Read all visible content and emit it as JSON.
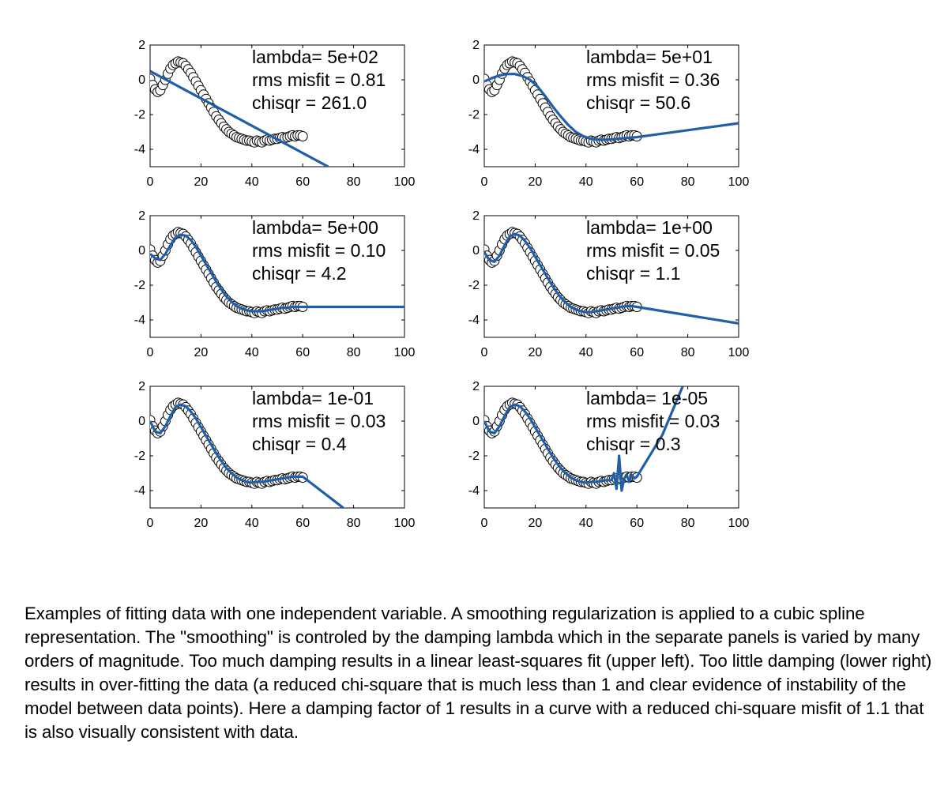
{
  "chart_data": [
    {
      "type": "line",
      "xlim": [
        0,
        100
      ],
      "ylim": [
        -5,
        2
      ],
      "xticks": [
        0,
        20,
        40,
        60,
        80,
        100
      ],
      "yticks": [
        -4,
        -2,
        0,
        2
      ],
      "annotations": [
        "lambda= 5e+02",
        "rms misfit =  0.81",
        "chisqr = 261.0"
      ],
      "fit_line": {
        "x": [
          0,
          70
        ],
        "y": [
          0.5,
          -5.0
        ]
      }
    },
    {
      "type": "line",
      "xlim": [
        0,
        100
      ],
      "ylim": [
        -5,
        2
      ],
      "xticks": [
        0,
        20,
        40,
        60,
        80,
        100
      ],
      "yticks": [
        -4,
        -2,
        0,
        2
      ],
      "annotations": [
        "lambda= 5e+01",
        "rms misfit =  0.36",
        "chisqr = 50.6"
      ],
      "fit_line": {
        "x": [
          0,
          3,
          6,
          9,
          12,
          15,
          18,
          21,
          24,
          27,
          30,
          33,
          36,
          39,
          42,
          45,
          48,
          52,
          56,
          60,
          70,
          80,
          90,
          100
        ],
        "y": [
          -0.1,
          0.1,
          0.25,
          0.33,
          0.33,
          0.22,
          0.0,
          -0.4,
          -0.95,
          -1.55,
          -2.1,
          -2.6,
          -3.0,
          -3.25,
          -3.4,
          -3.45,
          -3.45,
          -3.4,
          -3.35,
          -3.3,
          -3.1,
          -2.9,
          -2.7,
          -2.5
        ]
      }
    },
    {
      "type": "line",
      "xlim": [
        0,
        100
      ],
      "ylim": [
        -5,
        2
      ],
      "xticks": [
        0,
        20,
        40,
        60,
        80,
        100
      ],
      "yticks": [
        -4,
        -2,
        0,
        2
      ],
      "annotations": [
        "lambda= 5e+00",
        "rms misfit =  0.10",
        "chisqr = 4.2"
      ],
      "fit_line": {
        "x": [
          0,
          2,
          4,
          6,
          8,
          10,
          12,
          14,
          16,
          18,
          20,
          22,
          24,
          26,
          28,
          30,
          32,
          34,
          36,
          38,
          40,
          42,
          44,
          46,
          48,
          50,
          52,
          54,
          56,
          58,
          60,
          100
        ],
        "y": [
          -0.2,
          -0.45,
          -0.55,
          -0.2,
          0.3,
          0.75,
          0.9,
          0.85,
          0.6,
          0.2,
          -0.3,
          -0.8,
          -1.3,
          -1.8,
          -2.25,
          -2.65,
          -2.95,
          -3.2,
          -3.35,
          -3.45,
          -3.5,
          -3.5,
          -3.5,
          -3.45,
          -3.4,
          -3.35,
          -3.3,
          -3.3,
          -3.25,
          -3.25,
          -3.25,
          -3.25
        ]
      }
    },
    {
      "type": "line",
      "xlim": [
        0,
        100
      ],
      "ylim": [
        -5,
        2
      ],
      "xticks": [
        0,
        20,
        40,
        60,
        80,
        100
      ],
      "yticks": [
        -4,
        -2,
        0,
        2
      ],
      "annotations": [
        "lambda= 1e+00",
        "rms misfit =  0.05",
        "chisqr = 1.1"
      ],
      "fit_line": {
        "x": [
          0,
          2,
          4,
          6,
          8,
          10,
          12,
          14,
          16,
          18,
          20,
          22,
          24,
          26,
          28,
          30,
          32,
          34,
          36,
          38,
          40,
          42,
          44,
          46,
          48,
          50,
          52,
          54,
          56,
          58,
          60,
          100
        ],
        "y": [
          -0.1,
          -0.55,
          -0.65,
          -0.3,
          0.3,
          0.8,
          0.95,
          0.85,
          0.55,
          0.15,
          -0.35,
          -0.85,
          -1.35,
          -1.85,
          -2.3,
          -2.7,
          -3.0,
          -3.25,
          -3.4,
          -3.5,
          -3.55,
          -3.55,
          -3.5,
          -3.45,
          -3.4,
          -3.35,
          -3.3,
          -3.25,
          -3.2,
          -3.2,
          -3.25,
          -4.2
        ]
      }
    },
    {
      "type": "line",
      "xlim": [
        0,
        100
      ],
      "ylim": [
        -5,
        2
      ],
      "xticks": [
        0,
        20,
        40,
        60,
        80,
        100
      ],
      "yticks": [
        -4,
        -2,
        0,
        2
      ],
      "annotations": [
        "lambda= 1e-01",
        "rms misfit =  0.03",
        "chisqr = 0.4"
      ],
      "fit_line": {
        "x": [
          0,
          2,
          4,
          6,
          8,
          10,
          12,
          14,
          16,
          18,
          20,
          22,
          24,
          26,
          28,
          30,
          32,
          34,
          36,
          38,
          40,
          42,
          44,
          46,
          48,
          50,
          52,
          54,
          56,
          58,
          60,
          76
        ],
        "y": [
          0.0,
          -0.6,
          -0.7,
          -0.3,
          0.3,
          0.8,
          0.95,
          0.85,
          0.55,
          0.15,
          -0.35,
          -0.85,
          -1.35,
          -1.85,
          -2.3,
          -2.7,
          -3.0,
          -3.25,
          -3.4,
          -3.5,
          -3.55,
          -3.5,
          -3.5,
          -3.45,
          -3.4,
          -3.35,
          -3.3,
          -3.25,
          -3.2,
          -3.2,
          -3.2,
          -5.0
        ]
      }
    },
    {
      "type": "line",
      "xlim": [
        0,
        100
      ],
      "ylim": [
        -5,
        2
      ],
      "xticks": [
        0,
        20,
        40,
        60,
        80,
        100
      ],
      "yticks": [
        -4,
        -2,
        0,
        2
      ],
      "annotations": [
        "lambda= 1e-05",
        "rms misfit =  0.03",
        "chisqr = 0.3"
      ],
      "fit_line": {
        "x": [
          0,
          2,
          4,
          6,
          8,
          10,
          12,
          14,
          16,
          18,
          20,
          22,
          24,
          26,
          28,
          30,
          32,
          34,
          36,
          38,
          40,
          42,
          44,
          46,
          48,
          50,
          51,
          52,
          53,
          54,
          55,
          56,
          57,
          58,
          59,
          60,
          70,
          78
        ],
        "y": [
          0.0,
          -0.6,
          -0.7,
          -0.3,
          0.3,
          0.8,
          0.95,
          0.85,
          0.55,
          0.15,
          -0.35,
          -0.85,
          -1.35,
          -1.85,
          -2.3,
          -2.7,
          -3.0,
          -3.25,
          -3.4,
          -3.5,
          -3.55,
          -3.5,
          -3.5,
          -3.45,
          -3.4,
          -3.4,
          -3.0,
          -3.9,
          -2.0,
          -4.0,
          -3.3,
          -3.1,
          -3.5,
          -3.1,
          -3.3,
          -3.2,
          -0.8,
          2.0
        ]
      }
    }
  ],
  "observed_data": {
    "x": [
      0,
      1,
      2,
      3,
      4,
      5,
      6,
      7,
      8,
      9,
      10,
      11,
      12,
      13,
      14,
      15,
      16,
      17,
      18,
      19,
      20,
      21,
      22,
      23,
      24,
      25,
      26,
      27,
      28,
      29,
      30,
      31,
      32,
      33,
      34,
      35,
      36,
      37,
      38,
      39,
      40,
      41,
      42,
      43,
      44,
      45,
      46,
      47,
      48,
      49,
      50,
      51,
      52,
      53,
      54,
      55,
      56,
      57,
      58,
      59,
      60
    ],
    "y": [
      0.05,
      -0.3,
      -0.55,
      -0.7,
      -0.6,
      -0.3,
      0.0,
      0.35,
      0.65,
      0.85,
      0.95,
      1.05,
      1.0,
      0.95,
      0.8,
      0.6,
      0.4,
      0.15,
      -0.1,
      -0.35,
      -0.6,
      -0.85,
      -1.1,
      -1.35,
      -1.6,
      -1.85,
      -2.1,
      -2.3,
      -2.5,
      -2.7,
      -2.85,
      -3.0,
      -3.1,
      -3.2,
      -3.3,
      -3.35,
      -3.4,
      -3.45,
      -3.5,
      -3.5,
      -3.55,
      -3.6,
      -3.5,
      -3.55,
      -3.6,
      -3.5,
      -3.45,
      -3.5,
      -3.45,
      -3.4,
      -3.4,
      -3.35,
      -3.3,
      -3.35,
      -3.3,
      -3.25,
      -3.2,
      -3.25,
      -3.2,
      -3.2,
      -3.25
    ]
  },
  "caption": "Examples of fitting data with one independent variable. A smoothing regularization is applied to a cubic spline representation. The \"smoothing\" is controled by the damping lambda which in the separate panels is varied by many orders of magnitude.  Too much damping results in a linear least-squares fit (upper left).  Too little damping (lower right) results in over-fitting the data (a reduced chi-square that is much less than 1 and clear evidence of instability of the model between data points). Here a damping factor of 1 results in a curve with a reduced chi-square misfit of 1.1 that is also visually consistent with data.",
  "colors": {
    "fit_line": "#1f5fa8",
    "marker_edge": "#000000",
    "marker_fill": "#ffffff",
    "axis": "#000000"
  }
}
